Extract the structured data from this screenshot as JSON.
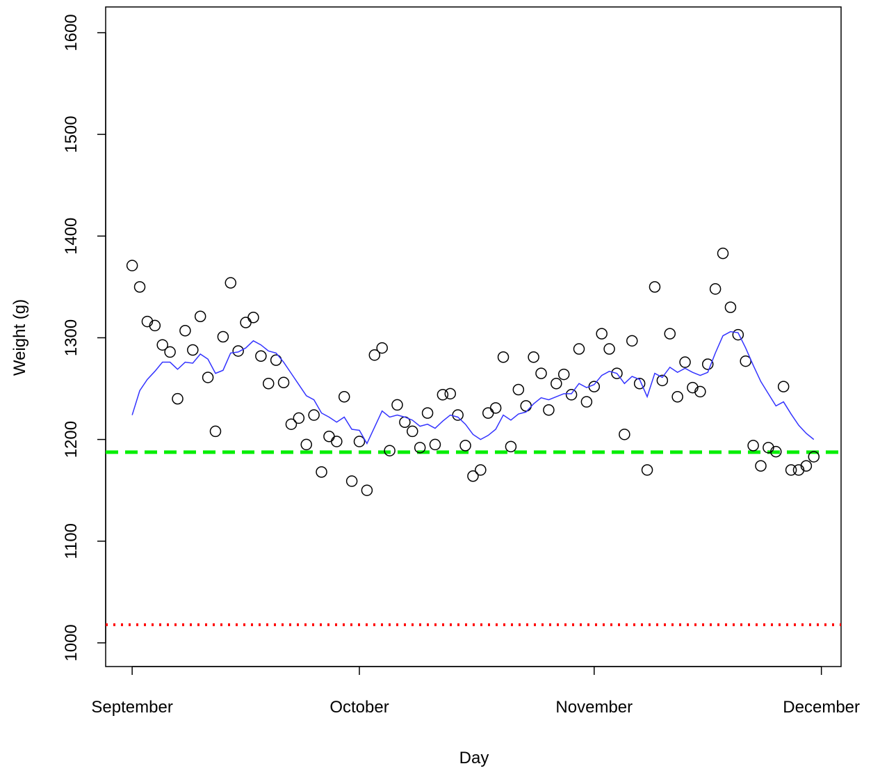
{
  "chart_data": {
    "type": "scatter",
    "xlabel": "Day",
    "ylabel": "Weight (g)",
    "x": [
      0,
      1,
      2,
      3,
      4,
      5,
      6,
      7,
      8,
      9,
      10,
      11,
      12,
      13,
      14,
      15,
      16,
      17,
      18,
      19,
      20,
      21,
      22,
      23,
      24,
      25,
      26,
      27,
      28,
      29,
      30,
      31,
      32,
      33,
      34,
      35,
      36,
      37,
      38,
      39,
      40,
      41,
      42,
      43,
      44,
      45,
      46,
      47,
      48,
      49,
      50,
      51,
      52,
      53,
      54,
      55,
      56,
      57,
      58,
      59,
      60,
      61,
      62,
      63,
      64,
      65,
      66,
      67,
      68,
      69,
      70,
      71,
      72,
      73,
      74,
      75,
      76,
      77,
      78,
      79,
      80,
      81,
      82,
      83,
      84,
      85,
      86,
      87,
      88,
      89,
      90
    ],
    "series": [
      {
        "style": "points",
        "color": "#000000",
        "values": [
          1371,
          1350,
          1316,
          1312,
          1293,
          1286,
          1240,
          1307,
          1288,
          1321,
          1261,
          1208,
          1301,
          1354,
          1287,
          1315,
          1320,
          1282,
          1255,
          1278,
          1256,
          1215,
          1221,
          1195,
          1224,
          1168,
          1203,
          1198,
          1242,
          1159,
          1198,
          1150,
          1283,
          1290,
          1189,
          1234,
          1217,
          1208,
          1192,
          1226,
          1195,
          1244,
          1245,
          1224,
          1194,
          1164,
          1170,
          1226,
          1231,
          1281,
          1193,
          1249,
          1233,
          1281,
          1265,
          1229,
          1255,
          1264,
          1244,
          1289,
          1237,
          1252,
          1304,
          1289,
          1265,
          1205,
          1297,
          1255,
          1170,
          1350,
          1258,
          1304,
          1242,
          1276,
          1251,
          1247,
          1274,
          1348,
          1383,
          1330,
          1303,
          1277,
          1194,
          1174,
          1192,
          1188,
          1252,
          1170,
          1170,
          1174,
          1183
        ]
      },
      {
        "style": "line",
        "color": "#3333ff",
        "values": [
          1224,
          1248,
          1259,
          1267,
          1276,
          1276,
          1269,
          1276,
          1275,
          1284,
          1279,
          1265,
          1268,
          1285,
          1286,
          1290,
          1297,
          1293,
          1287,
          1285,
          1276,
          1265,
          1254,
          1243,
          1239,
          1226,
          1222,
          1217,
          1222,
          1210,
          1209,
          1196,
          1212,
          1228,
          1222,
          1224,
          1222,
          1219,
          1213,
          1215,
          1211,
          1218,
          1224,
          1222,
          1215,
          1205,
          1200,
          1204,
          1210,
          1224,
          1219,
          1225,
          1227,
          1235,
          1241,
          1239,
          1242,
          1245,
          1245,
          1255,
          1251,
          1254,
          1263,
          1267,
          1265,
          1255,
          1262,
          1259,
          1242,
          1265,
          1261,
          1271,
          1266,
          1270,
          1266,
          1263,
          1266,
          1285,
          1302,
          1306,
          1305,
          1290,
          1273,
          1257,
          1245,
          1233,
          1237,
          1225,
          1214,
          1206,
          1200
        ]
      }
    ],
    "hlines": [
      {
        "value": 1187.5,
        "color": "#00ee00",
        "style": "dashed"
      },
      {
        "value": 1017.8,
        "color": "#ff0000",
        "style": "dotted"
      }
    ],
    "xlim": [
      -3.5,
      93.6
    ],
    "xticks": [
      {
        "value": 0,
        "label": "September"
      },
      {
        "value": 30,
        "label": "October"
      },
      {
        "value": 61,
        "label": "November"
      },
      {
        "value": 91,
        "label": "December"
      }
    ],
    "ylim": [
      976.7,
      1625.3
    ],
    "yticks": [
      1000,
      1100,
      1200,
      1300,
      1400,
      1500,
      1600
    ]
  }
}
